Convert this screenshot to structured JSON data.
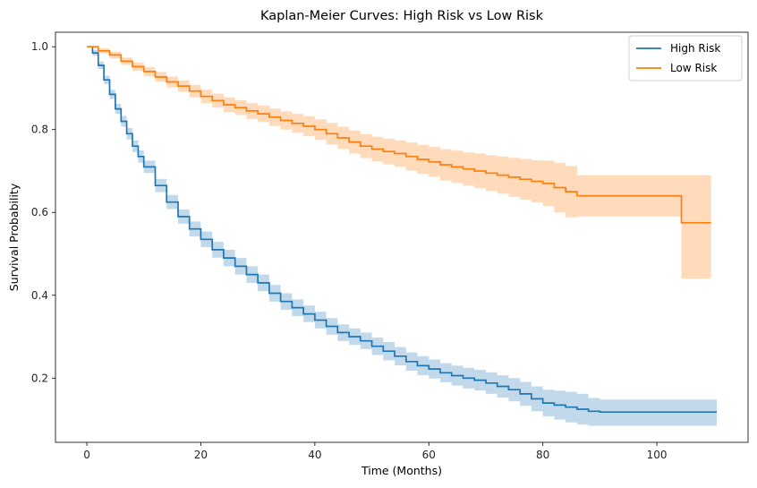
{
  "chart_data": {
    "type": "line",
    "title": "Kaplan-Meier Curves: High Risk vs Low Risk",
    "xlabel": "Time (Months)",
    "ylabel": "Survival Probability",
    "xlim": [
      -5.5,
      116
    ],
    "ylim": [
      0.045,
      1.035
    ],
    "xticks": [
      0,
      20,
      40,
      60,
      80,
      100
    ],
    "xtick_labels": [
      "0",
      "20",
      "40",
      "60",
      "80",
      "100"
    ],
    "yticks": [
      0.2,
      0.4,
      0.6,
      0.8,
      1.0
    ],
    "ytick_labels": [
      "0.2",
      "0.4",
      "0.6",
      "0.8",
      "1.0"
    ],
    "grid": false,
    "legend": {
      "position": "top-right"
    },
    "series": [
      {
        "name": "High Risk",
        "color": "#1f77b4",
        "steps": [
          [
            0,
            1.0
          ],
          [
            1,
            0.985
          ],
          [
            2,
            0.955
          ],
          [
            3,
            0.92
          ],
          [
            4,
            0.885
          ],
          [
            5,
            0.85
          ],
          [
            6,
            0.82
          ],
          [
            7,
            0.79
          ],
          [
            8,
            0.76
          ],
          [
            9,
            0.735
          ],
          [
            10,
            0.71
          ],
          [
            12,
            0.665
          ],
          [
            14,
            0.625
          ],
          [
            16,
            0.59
          ],
          [
            18,
            0.56
          ],
          [
            20,
            0.535
          ],
          [
            22,
            0.51
          ],
          [
            24,
            0.49
          ],
          [
            26,
            0.47
          ],
          [
            28,
            0.45
          ],
          [
            30,
            0.43
          ],
          [
            32,
            0.405
          ],
          [
            34,
            0.385
          ],
          [
            36,
            0.37
          ],
          [
            38,
            0.355
          ],
          [
            40,
            0.34
          ],
          [
            42,
            0.325
          ],
          [
            44,
            0.31
          ],
          [
            46,
            0.3
          ],
          [
            48,
            0.29
          ],
          [
            50,
            0.277
          ],
          [
            52,
            0.265
          ],
          [
            54,
            0.253
          ],
          [
            56,
            0.24
          ],
          [
            58,
            0.23
          ],
          [
            60,
            0.222
          ],
          [
            62,
            0.213
          ],
          [
            64,
            0.206
          ],
          [
            66,
            0.2
          ],
          [
            68,
            0.195
          ],
          [
            70,
            0.188
          ],
          [
            72,
            0.18
          ],
          [
            74,
            0.172
          ],
          [
            76,
            0.162
          ],
          [
            78,
            0.15
          ],
          [
            80,
            0.14
          ],
          [
            82,
            0.135
          ],
          [
            84,
            0.13
          ],
          [
            86,
            0.125
          ],
          [
            88,
            0.12
          ],
          [
            90,
            0.118
          ],
          [
            110.5,
            0.118
          ]
        ],
        "ci_lower": [
          1.0,
          0.978,
          0.946,
          0.91,
          0.874,
          0.838,
          0.807,
          0.776,
          0.746,
          0.72,
          0.695,
          0.649,
          0.608,
          0.573,
          0.542,
          0.516,
          0.491,
          0.47,
          0.45,
          0.43,
          0.41,
          0.385,
          0.365,
          0.35,
          0.335,
          0.32,
          0.305,
          0.29,
          0.28,
          0.27,
          0.256,
          0.243,
          0.231,
          0.218,
          0.207,
          0.199,
          0.19,
          0.182,
          0.175,
          0.17,
          0.162,
          0.153,
          0.144,
          0.133,
          0.12,
          0.108,
          0.1,
          0.093,
          0.088,
          0.085,
          0.085,
          0.085
        ],
        "ci_upper": [
          1.0,
          0.992,
          0.964,
          0.93,
          0.896,
          0.862,
          0.833,
          0.804,
          0.774,
          0.75,
          0.725,
          0.681,
          0.642,
          0.607,
          0.578,
          0.554,
          0.529,
          0.51,
          0.49,
          0.47,
          0.45,
          0.425,
          0.405,
          0.39,
          0.375,
          0.36,
          0.345,
          0.33,
          0.32,
          0.31,
          0.298,
          0.287,
          0.275,
          0.262,
          0.253,
          0.245,
          0.236,
          0.23,
          0.225,
          0.22,
          0.214,
          0.207,
          0.2,
          0.191,
          0.18,
          0.172,
          0.17,
          0.167,
          0.162,
          0.152,
          0.148,
          0.148
        ]
      },
      {
        "name": "Low Risk",
        "color": "#ff7f0e",
        "steps": [
          [
            0,
            1.0
          ],
          [
            2,
            0.99
          ],
          [
            4,
            0.98
          ],
          [
            6,
            0.965
          ],
          [
            8,
            0.952
          ],
          [
            10,
            0.94
          ],
          [
            12,
            0.927
          ],
          [
            14,
            0.915
          ],
          [
            16,
            0.905
          ],
          [
            18,
            0.893
          ],
          [
            20,
            0.88
          ],
          [
            22,
            0.87
          ],
          [
            24,
            0.86
          ],
          [
            26,
            0.853
          ],
          [
            28,
            0.845
          ],
          [
            30,
            0.838
          ],
          [
            32,
            0.83
          ],
          [
            34,
            0.822
          ],
          [
            36,
            0.815
          ],
          [
            38,
            0.808
          ],
          [
            40,
            0.8
          ],
          [
            42,
            0.79
          ],
          [
            44,
            0.78
          ],
          [
            46,
            0.77
          ],
          [
            48,
            0.76
          ],
          [
            50,
            0.753
          ],
          [
            52,
            0.747
          ],
          [
            54,
            0.742
          ],
          [
            56,
            0.735
          ],
          [
            58,
            0.728
          ],
          [
            60,
            0.722
          ],
          [
            62,
            0.715
          ],
          [
            64,
            0.71
          ],
          [
            66,
            0.705
          ],
          [
            68,
            0.7
          ],
          [
            70,
            0.695
          ],
          [
            72,
            0.69
          ],
          [
            74,
            0.685
          ],
          [
            76,
            0.68
          ],
          [
            78,
            0.675
          ],
          [
            80,
            0.67
          ],
          [
            82,
            0.66
          ],
          [
            84,
            0.65
          ],
          [
            86,
            0.64
          ],
          [
            104.3,
            0.575
          ],
          [
            109.5,
            0.575
          ]
        ],
        "ci_lower": [
          1.0,
          0.984,
          0.972,
          0.956,
          0.942,
          0.929,
          0.915,
          0.902,
          0.891,
          0.878,
          0.864,
          0.853,
          0.842,
          0.835,
          0.826,
          0.818,
          0.809,
          0.8,
          0.792,
          0.784,
          0.775,
          0.764,
          0.753,
          0.742,
          0.731,
          0.723,
          0.716,
          0.71,
          0.701,
          0.693,
          0.686,
          0.677,
          0.671,
          0.665,
          0.658,
          0.652,
          0.645,
          0.638,
          0.631,
          0.624,
          0.615,
          0.6,
          0.588,
          0.59,
          0.44,
          0.44
        ],
        "ci_upper": [
          1.0,
          0.996,
          0.988,
          0.974,
          0.962,
          0.951,
          0.939,
          0.928,
          0.919,
          0.908,
          0.896,
          0.887,
          0.878,
          0.871,
          0.864,
          0.858,
          0.851,
          0.844,
          0.838,
          0.832,
          0.825,
          0.816,
          0.807,
          0.798,
          0.789,
          0.783,
          0.778,
          0.774,
          0.769,
          0.763,
          0.758,
          0.753,
          0.749,
          0.745,
          0.742,
          0.738,
          0.735,
          0.732,
          0.729,
          0.726,
          0.725,
          0.72,
          0.712,
          0.69,
          0.69,
          0.69
        ]
      }
    ]
  }
}
